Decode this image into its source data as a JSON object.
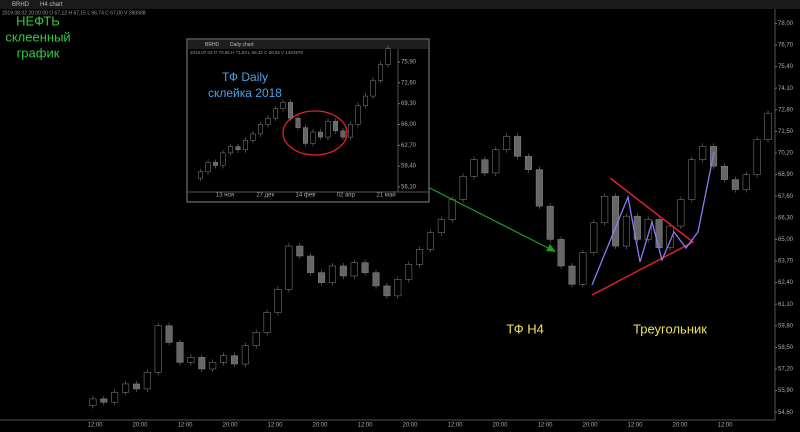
{
  "toolbar": {
    "symbol": "BRHD",
    "chart": "H4 chart",
    "ohlc": "2019.08.02 20:00:00 O 67,12 H 67,15 L 66,74 C 67,00 V 390688"
  },
  "annotations": {
    "title": [
      "НЕФТЬ",
      "склеенный",
      "график"
    ],
    "timeframe": "ТФ H4",
    "pattern": "Треугольник"
  },
  "main_chart": {
    "prices": [
      55.0,
      55.4,
      55.2,
      55.8,
      56.3,
      56.0,
      57.0,
      59.8,
      58.8,
      57.6,
      57.9,
      57.2,
      57.6,
      58.0,
      57.5,
      58.6,
      59.4,
      60.6,
      62.0,
      64.6,
      64.0,
      63.0,
      62.4,
      63.4,
      62.8,
      63.6,
      63.0,
      62.2,
      61.6,
      62.6,
      63.5,
      64.4,
      65.4,
      66.2,
      67.4,
      68.8,
      69.8,
      69.0,
      70.4,
      71.2,
      70.0,
      69.2,
      67.0,
      65.0,
      63.4,
      62.3,
      64.2,
      66.0,
      67.6,
      64.6,
      66.4,
      65.0,
      66.2,
      64.5,
      65.8,
      67.4,
      69.8,
      70.6,
      69.4,
      68.6,
      68.0,
      68.9,
      71.0,
      72.6
    ],
    "ylim": [
      54.13,
      79.41
    ],
    "yticks": [
      {
        "value": 78.0,
        "label": "78,00"
      },
      {
        "value": 76.7,
        "label": "76,70"
      },
      {
        "value": 75.4,
        "label": "75,40"
      },
      {
        "value": 74.1,
        "label": "74,10"
      },
      {
        "value": 72.8,
        "label": "72,80"
      },
      {
        "value": 71.5,
        "label": "71,50"
      },
      {
        "value": 70.2,
        "label": "70,20"
      },
      {
        "value": 68.9,
        "label": "68,90"
      },
      {
        "value": 67.6,
        "label": "67,60"
      },
      {
        "value": 66.3,
        "label": "66,30"
      },
      {
        "value": 65.0,
        "label": "65,00"
      },
      {
        "value": 63.7,
        "label": "63,70"
      },
      {
        "value": 62.4,
        "label": "62,40"
      },
      {
        "value": 61.1,
        "label": "61,10"
      },
      {
        "value": 59.8,
        "label": "59,80"
      },
      {
        "value": 58.5,
        "label": "58,50"
      },
      {
        "value": 57.2,
        "label": "57,20"
      },
      {
        "value": 55.9,
        "label": "55,90"
      },
      {
        "value": 54.6,
        "label": "54,60"
      }
    ],
    "xticks": [
      "12:00",
      "20:00",
      "12:00",
      "20:00",
      "12:00",
      "20:00",
      "12:00",
      "20:00",
      "12:00",
      "20:00",
      "12:00",
      "20:00",
      "12:00",
      "20:00",
      "12:00"
    ]
  },
  "inset": {
    "symbol": "BRHD",
    "chart": "Daily chart",
    "ohlc": "2018.07.03 O 70,56 H 71,63 L 69,42 C 69,55 V 1481978",
    "note": [
      "ТФ Daily",
      "склейка 2018"
    ],
    "prices": [
      57.5,
      58.5,
      60.0,
      59.5,
      61.5,
      62.5,
      62.0,
      63.5,
      64.5,
      66.0,
      67.0,
      68.5,
      69.5,
      67.0,
      65.5,
      63.0,
      64.8,
      64.0,
      66.5,
      65.0,
      64.0,
      66.0,
      69.0,
      70.5,
      73.0,
      75.5,
      78.0
    ],
    "ylim": [
      55.62,
      78.59
    ],
    "yticks": [
      {
        "value": 75.9,
        "label": "75,90"
      },
      {
        "value": 72.6,
        "label": "72,60"
      },
      {
        "value": 69.3,
        "label": "69,30"
      },
      {
        "value": 66.0,
        "label": "66,00"
      },
      {
        "value": 62.7,
        "label": "62,70"
      },
      {
        "value": 59.4,
        "label": "59,40"
      },
      {
        "value": 56.1,
        "label": "56,10"
      }
    ],
    "xticks": [
      "13 ноя",
      "27 дек",
      "14 фев",
      "02 апр",
      "21 май"
    ]
  }
}
